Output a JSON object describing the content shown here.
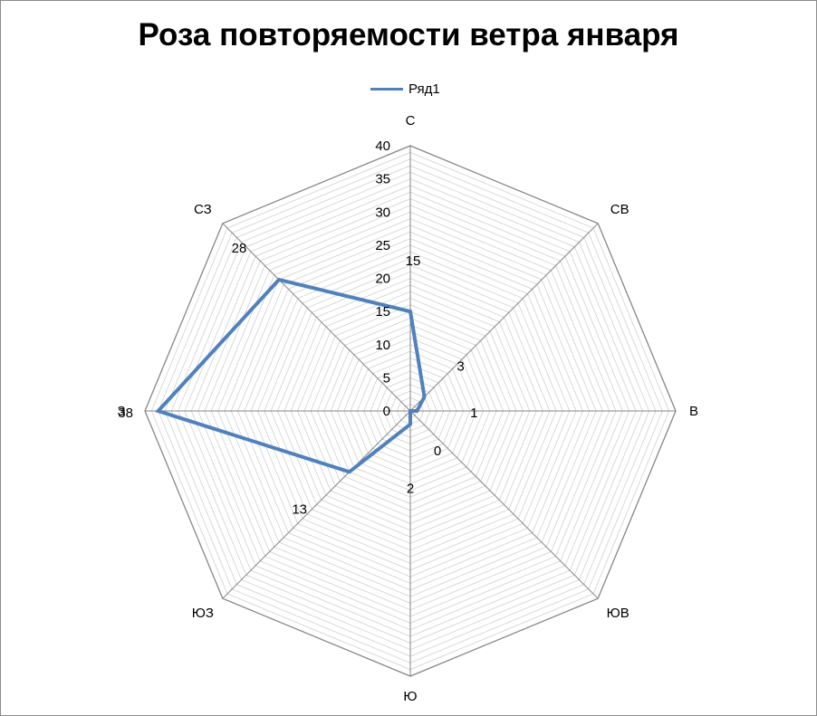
{
  "chart_data": {
    "type": "radar",
    "title": "Роза повторяемости ветра января",
    "categories": [
      "С",
      "СВ",
      "В",
      "ЮВ",
      "Ю",
      "ЮЗ",
      "З",
      "СЗ"
    ],
    "series": [
      {
        "name": "Ряд1",
        "color": "#4f81bd",
        "values": [
          15,
          3,
          1,
          0,
          2,
          13,
          38,
          28
        ]
      }
    ],
    "rlim": [
      0,
      40
    ],
    "major_ticks": [
      0,
      5,
      10,
      15,
      20,
      25,
      30,
      35,
      40
    ],
    "major_tick_labels": [
      "0",
      "5",
      "10",
      "15",
      "20",
      "25",
      "30",
      "35",
      "40"
    ],
    "data_labels": [
      "15",
      "3",
      "1",
      "0",
      "2",
      "13",
      "38",
      "28"
    ],
    "grid": true,
    "legend_position": "top"
  }
}
